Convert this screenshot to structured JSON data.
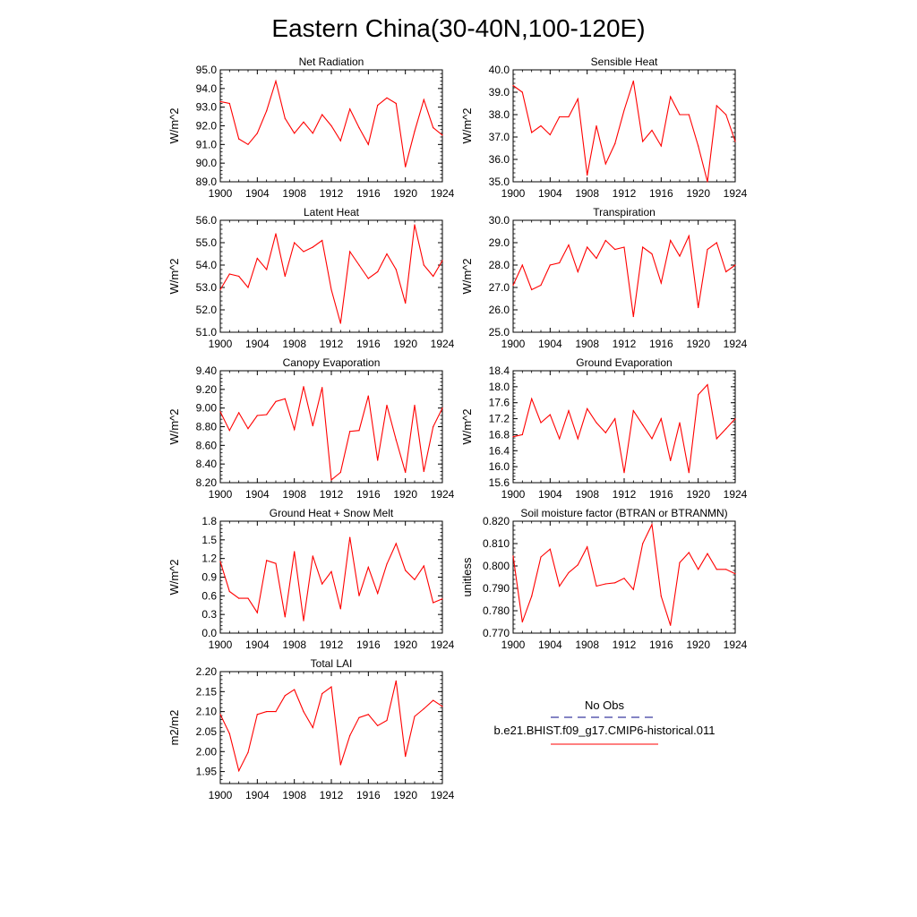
{
  "title": "Eastern China(30-40N,100-120E)",
  "legend": {
    "obs_label": "No Obs",
    "obs_color": "#3a3aa0",
    "model_label": "b.e21.BHIST.f09_g17.CMIP6-historical.011",
    "model_color": "#ff0000"
  },
  "line_color": "#ff0000",
  "chart_data": [
    {
      "type": "line",
      "title": "Net Radiation",
      "ylabel": "W/m^2",
      "xlim": [
        1900,
        1924
      ],
      "ylim": [
        89,
        95
      ],
      "yticks": [
        89,
        90,
        91,
        92,
        93,
        94,
        95
      ],
      "ytick_labels": [
        "89.0",
        "90.0",
        "91.0",
        "92.0",
        "93.0",
        "94.0",
        "95.0"
      ],
      "xticks": [
        1900,
        1904,
        1908,
        1912,
        1916,
        1920,
        1924
      ],
      "x": [
        1900,
        1901,
        1902,
        1903,
        1904,
        1905,
        1906,
        1907,
        1908,
        1909,
        1910,
        1911,
        1912,
        1913,
        1914,
        1915,
        1916,
        1917,
        1918,
        1919,
        1920,
        1921,
        1922,
        1923,
        1924
      ],
      "series": [
        {
          "values": [
            93.3,
            93.2,
            91.3,
            91.0,
            91.6,
            92.8,
            94.4,
            92.4,
            91.6,
            92.2,
            91.6,
            92.6,
            92.0,
            91.2,
            92.9,
            91.9,
            91.0,
            93.1,
            93.5,
            93.2,
            89.8,
            91.7,
            93.4,
            91.9,
            91.5
          ]
        }
      ]
    },
    {
      "type": "line",
      "title": "Sensible Heat",
      "ylabel": "W/m^2",
      "xlim": [
        1900,
        1924
      ],
      "ylim": [
        35,
        40
      ],
      "yticks": [
        35,
        36,
        37,
        38,
        39,
        40
      ],
      "ytick_labels": [
        "35.0",
        "36.0",
        "37.0",
        "38.0",
        "39.0",
        "40.0"
      ],
      "xticks": [
        1900,
        1904,
        1908,
        1912,
        1916,
        1920,
        1924
      ],
      "x": [
        1900,
        1901,
        1902,
        1903,
        1904,
        1905,
        1906,
        1907,
        1908,
        1909,
        1910,
        1911,
        1912,
        1913,
        1914,
        1915,
        1916,
        1917,
        1918,
        1919,
        1920,
        1921,
        1922,
        1923,
        1924
      ],
      "series": [
        {
          "values": [
            39.3,
            39.0,
            37.2,
            37.5,
            37.1,
            37.9,
            37.9,
            38.7,
            35.3,
            37.5,
            35.8,
            36.7,
            38.2,
            39.5,
            36.8,
            37.3,
            36.6,
            38.8,
            38.0,
            38.0,
            36.6,
            35.0,
            38.4,
            38.0,
            36.8
          ]
        }
      ]
    },
    {
      "type": "line",
      "title": "Latent Heat",
      "ylabel": "W/m^2",
      "xlim": [
        1900,
        1924
      ],
      "ylim": [
        51,
        56
      ],
      "yticks": [
        51,
        52,
        53,
        54,
        55,
        56
      ],
      "ytick_labels": [
        "51.0",
        "52.0",
        "53.0",
        "54.0",
        "55.0",
        "56.0"
      ],
      "xticks": [
        1900,
        1904,
        1908,
        1912,
        1916,
        1920,
        1924
      ],
      "x": [
        1900,
        1901,
        1902,
        1903,
        1904,
        1905,
        1906,
        1907,
        1908,
        1909,
        1910,
        1911,
        1912,
        1913,
        1914,
        1915,
        1916,
        1917,
        1918,
        1919,
        1920,
        1921,
        1922,
        1923,
        1924
      ],
      "series": [
        {
          "values": [
            52.9,
            53.6,
            53.5,
            53.0,
            54.3,
            53.8,
            55.4,
            53.5,
            55.0,
            54.6,
            54.8,
            55.1,
            52.9,
            51.4,
            54.6,
            54.0,
            53.4,
            53.7,
            54.5,
            53.8,
            52.3,
            55.8,
            54.0,
            53.5,
            54.2
          ]
        }
      ]
    },
    {
      "type": "line",
      "title": "Transpiration",
      "ylabel": "W/m^2",
      "xlim": [
        1900,
        1924
      ],
      "ylim": [
        25,
        30
      ],
      "yticks": [
        25,
        26,
        27,
        28,
        29,
        30
      ],
      "ytick_labels": [
        "25.0",
        "26.0",
        "27.0",
        "28.0",
        "29.0",
        "30.0"
      ],
      "xticks": [
        1900,
        1904,
        1908,
        1912,
        1916,
        1920,
        1924
      ],
      "x": [
        1900,
        1901,
        1902,
        1903,
        1904,
        1905,
        1906,
        1907,
        1908,
        1909,
        1910,
        1911,
        1912,
        1913,
        1914,
        1915,
        1916,
        1917,
        1918,
        1919,
        1920,
        1921,
        1922,
        1923,
        1924
      ],
      "series": [
        {
          "values": [
            27.1,
            28.0,
            26.9,
            27.1,
            28.0,
            28.1,
            28.9,
            27.7,
            28.8,
            28.3,
            29.1,
            28.7,
            28.8,
            25.7,
            28.8,
            28.5,
            27.2,
            29.1,
            28.4,
            29.3,
            26.1,
            28.7,
            29.0,
            27.7,
            28.0
          ]
        }
      ]
    },
    {
      "type": "line",
      "title": "Canopy Evaporation",
      "ylabel": "W/m^2",
      "xlim": [
        1900,
        1924
      ],
      "ylim": [
        8.2,
        9.4
      ],
      "yticks": [
        8.2,
        8.4,
        8.6,
        8.8,
        9.0,
        9.2,
        9.4
      ],
      "ytick_labels": [
        "8.20",
        "8.40",
        "8.60",
        "8.80",
        "9.00",
        "9.20",
        "9.40"
      ],
      "xticks": [
        1900,
        1904,
        1908,
        1912,
        1916,
        1920,
        1924
      ],
      "x": [
        1900,
        1901,
        1902,
        1903,
        1904,
        1905,
        1906,
        1907,
        1908,
        1909,
        1910,
        1911,
        1912,
        1913,
        1914,
        1915,
        1916,
        1917,
        1918,
        1919,
        1920,
        1921,
        1922,
        1923,
        1924
      ],
      "series": [
        {
          "values": [
            8.96,
            8.76,
            8.95,
            8.78,
            8.92,
            8.93,
            9.07,
            9.1,
            8.77,
            9.23,
            8.81,
            9.22,
            8.23,
            8.31,
            8.75,
            8.76,
            9.13,
            8.44,
            9.03,
            8.66,
            8.31,
            9.03,
            8.32,
            8.8,
            9.0
          ]
        }
      ]
    },
    {
      "type": "line",
      "title": "Ground Evaporation",
      "ylabel": "W/m^2",
      "xlim": [
        1900,
        1924
      ],
      "ylim": [
        15.6,
        18.4
      ],
      "yticks": [
        15.6,
        16.0,
        16.4,
        16.8,
        17.2,
        17.6,
        18.0,
        18.4
      ],
      "ytick_labels": [
        "15.6",
        "16.0",
        "16.4",
        "16.8",
        "17.2",
        "17.6",
        "18.0",
        "18.4"
      ],
      "xticks": [
        1900,
        1904,
        1908,
        1912,
        1916,
        1920,
        1924
      ],
      "x": [
        1900,
        1901,
        1902,
        1903,
        1904,
        1905,
        1906,
        1907,
        1908,
        1909,
        1910,
        1911,
        1912,
        1913,
        1914,
        1915,
        1916,
        1917,
        1918,
        1919,
        1920,
        1921,
        1922,
        1923,
        1924
      ],
      "series": [
        {
          "values": [
            16.75,
            16.8,
            17.7,
            17.1,
            17.3,
            16.7,
            17.4,
            16.7,
            17.45,
            17.1,
            16.85,
            17.2,
            15.85,
            17.4,
            17.05,
            16.7,
            17.2,
            16.15,
            17.1,
            15.85,
            17.8,
            18.05,
            16.7,
            16.95,
            17.2
          ]
        }
      ]
    },
    {
      "type": "line",
      "title": "Ground Heat + Snow Melt",
      "ylabel": "W/m^2",
      "xlim": [
        1900,
        1924
      ],
      "ylim": [
        0,
        1.8
      ],
      "yticks": [
        0,
        0.3,
        0.6,
        0.9,
        1.2,
        1.5,
        1.8
      ],
      "ytick_labels": [
        "0.0",
        "0.3",
        "0.6",
        "0.9",
        "1.2",
        "1.5",
        "1.8"
      ],
      "xticks": [
        1900,
        1904,
        1908,
        1912,
        1916,
        1920,
        1924
      ],
      "x": [
        1900,
        1901,
        1902,
        1903,
        1904,
        1905,
        1906,
        1907,
        1908,
        1909,
        1910,
        1911,
        1912,
        1913,
        1914,
        1915,
        1916,
        1917,
        1918,
        1919,
        1920,
        1921,
        1922,
        1923,
        1924
      ],
      "series": [
        {
          "values": [
            1.15,
            0.67,
            0.56,
            0.56,
            0.33,
            1.17,
            1.12,
            0.26,
            1.31,
            0.2,
            1.24,
            0.79,
            0.99,
            0.39,
            1.54,
            0.6,
            1.06,
            0.64,
            1.11,
            1.44,
            1.01,
            0.86,
            1.08,
            0.49,
            0.55
          ]
        }
      ]
    },
    {
      "type": "line",
      "title": "Soil moisture factor (BTRAN or BTRANMN)",
      "ylabel": "unitless",
      "xlim": [
        1900,
        1924
      ],
      "ylim": [
        0.77,
        0.82
      ],
      "yticks": [
        0.77,
        0.78,
        0.79,
        0.8,
        0.81,
        0.82
      ],
      "ytick_labels": [
        "0.770",
        "0.780",
        "0.790",
        "0.800",
        "0.810",
        "0.820"
      ],
      "xticks": [
        1900,
        1904,
        1908,
        1912,
        1916,
        1920,
        1924
      ],
      "x": [
        1900,
        1901,
        1902,
        1903,
        1904,
        1905,
        1906,
        1907,
        1908,
        1909,
        1910,
        1911,
        1912,
        1913,
        1914,
        1915,
        1916,
        1917,
        1918,
        1919,
        1920,
        1921,
        1922,
        1923,
        1924
      ],
      "series": [
        {
          "values": [
            0.8045,
            0.775,
            0.7865,
            0.804,
            0.8075,
            0.791,
            0.797,
            0.8005,
            0.8085,
            0.791,
            0.792,
            0.7925,
            0.7945,
            0.7895,
            0.81,
            0.8185,
            0.7865,
            0.7735,
            0.8015,
            0.806,
            0.7985,
            0.8055,
            0.7985,
            0.7985,
            0.7965
          ]
        }
      ]
    },
    {
      "type": "line",
      "title": "Total LAI",
      "ylabel": "m2/m2",
      "xlim": [
        1900,
        1924
      ],
      "ylim": [
        1.92,
        2.2
      ],
      "yticks": [
        1.95,
        2.0,
        2.05,
        2.1,
        2.15,
        2.2
      ],
      "ytick_labels": [
        "1.95",
        "2.00",
        "2.05",
        "2.10",
        "2.15",
        "2.20"
      ],
      "xticks": [
        1900,
        1904,
        1908,
        1912,
        1916,
        1920,
        1924
      ],
      "x": [
        1900,
        1901,
        1902,
        1903,
        1904,
        1905,
        1906,
        1907,
        1908,
        1909,
        1910,
        1911,
        1912,
        1913,
        1914,
        1915,
        1916,
        1917,
        1918,
        1919,
        1920,
        1921,
        1922,
        1923,
        1924
      ],
      "series": [
        {
          "values": [
            2.093,
            2.045,
            1.952,
            1.998,
            2.093,
            2.1,
            2.1,
            2.14,
            2.155,
            2.1,
            2.06,
            2.145,
            2.162,
            1.967,
            2.04,
            2.085,
            2.093,
            2.065,
            2.078,
            2.177,
            1.988,
            2.088,
            2.107,
            2.128,
            2.113
          ]
        }
      ]
    }
  ]
}
